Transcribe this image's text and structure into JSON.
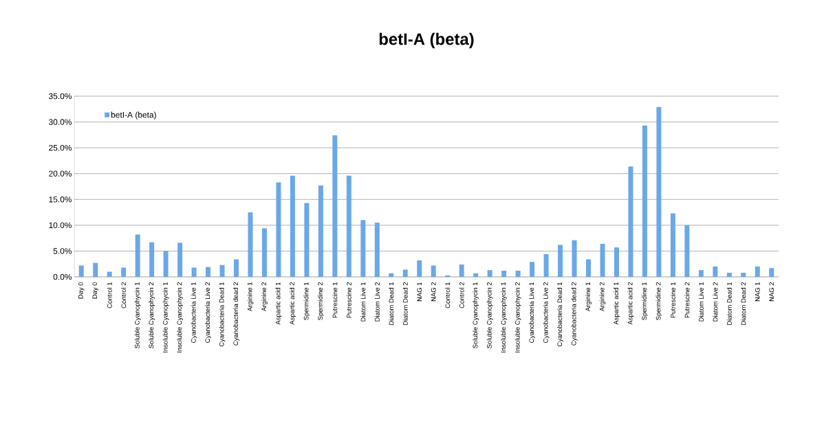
{
  "chart_data": {
    "type": "bar",
    "title": "betI-A (beta)",
    "categories": [
      "Day 0",
      "Day 0",
      "Control 1",
      "Control 2",
      "Soluble Cyanophycin 1",
      "Soluble Cyanophycin 2",
      "Insoluble Cyanophycin 1",
      "Insoluble Cyanophycin 2",
      "Cyanobacteria Live 1",
      "Cyanobacteria Live 2",
      "Cyanobacteria Dead 1",
      "Cyanobacteria dead 2",
      "Arginine 1",
      "Arginine 2",
      "Aspartic acid 1",
      "Aspartic acid 2",
      "Spermidine 1",
      "Spermidine 2",
      "Putrescine 1",
      "Putrescine 2",
      "Diatom Live 1",
      "Diatom Live 2",
      "Diatom Dead 1",
      "Diatom Dead 2",
      "NAG 1",
      "NAG 2",
      "Control 1",
      "Control 2",
      "Soluble Cyanophycin 1",
      "Soluble Cyanophycin 2",
      "Insoluble Cyanophycin 1",
      "Insoluble Cyanophycin 2",
      "Cyanobacteria Live 1",
      "Cyanobacteria Live 2",
      "Cyanobacteria Dead 1",
      "Cyanobacteria dead 2",
      "Arginine 1",
      "Arginine 2",
      "Aspartic acid 1",
      "Aspartic acid 2",
      "Spermidine 1",
      "Spermidine 2",
      "Putrescine 1",
      "Putrescine 2",
      "Diatom Live 1",
      "Diatom Live 2",
      "Diatom Dead 1",
      "Diatom Dead 2",
      "NAG 1",
      "NAG 2"
    ],
    "series": [
      {
        "name": "betI-A (beta)",
        "color": "#6aa8e8",
        "values": [
          2.2,
          2.7,
          1.0,
          1.8,
          8.2,
          6.7,
          5.0,
          6.6,
          1.8,
          1.9,
          2.3,
          3.4,
          12.5,
          9.4,
          18.3,
          19.6,
          14.3,
          17.7,
          27.4,
          19.6,
          11.0,
          10.5,
          0.7,
          1.4,
          3.2,
          2.2,
          0.3,
          2.4,
          0.7,
          1.3,
          1.2,
          1.2,
          2.9,
          4.4,
          6.2,
          7.1,
          3.4,
          6.4,
          5.7,
          21.4,
          29.3,
          32.9,
          12.3,
          10.0,
          1.3,
          2.0,
          0.8,
          0.8,
          2.0,
          1.7
        ]
      }
    ],
    "ylim": [
      0,
      35
    ],
    "yticks": [
      {
        "value": 0,
        "label": "0.0%"
      },
      {
        "value": 5,
        "label": "5.0%"
      },
      {
        "value": 10,
        "label": "10.0%"
      },
      {
        "value": 15,
        "label": "15.0%"
      },
      {
        "value": 20,
        "label": "20.0%"
      },
      {
        "value": 25,
        "label": "25.0%"
      },
      {
        "value": 30,
        "label": "30.0%"
      },
      {
        "value": 35,
        "label": "35.0%"
      }
    ],
    "grid": "y",
    "legend": "top left"
  }
}
